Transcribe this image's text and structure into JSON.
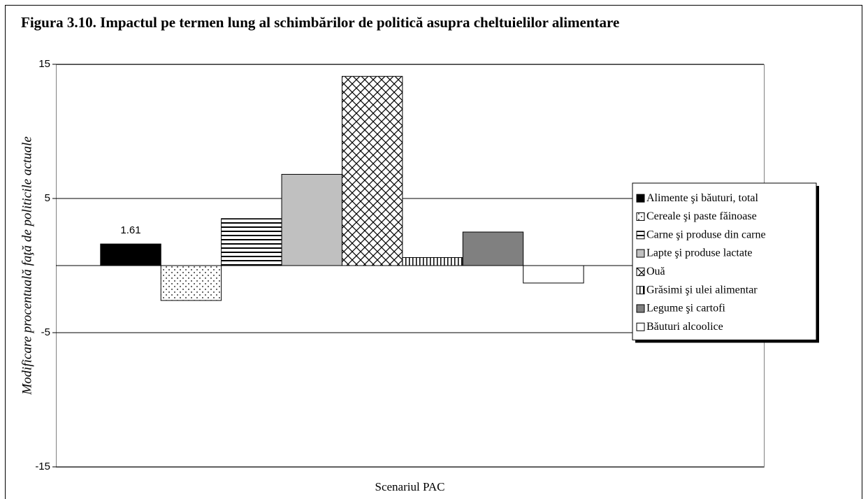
{
  "chart_data": {
    "type": "bar",
    "title": "Figura 3.10. Impactul pe termen lung al schimbărilor de politică asupra cheltuielilor alimentare",
    "y_label": "Modificare procentuală faţă de politicile actuale",
    "x_label": "Scenariul PAC",
    "categories": [
      "Scenariul PAC"
    ],
    "ylim": [
      -15,
      15
    ],
    "yticks": [
      -15,
      -5,
      5,
      15
    ],
    "grid": true,
    "legend": "right",
    "series": [
      {
        "name": "Alimente şi băuturi, total",
        "color": "#000000",
        "pattern": "solid",
        "values": [
          1.61
        ],
        "data_labels": true
      },
      {
        "name": "Cereale şi paste făinoase",
        "color": "#ffffff",
        "pattern": "dots",
        "values": [
          -2.6
        ]
      },
      {
        "name": "Carne şi produse din carne",
        "color": "#ffffff",
        "pattern": "hlines",
        "values": [
          3.5
        ]
      },
      {
        "name": "Lapte şi produse lactate",
        "color": "#c0c0c0",
        "pattern": "solid",
        "values": [
          6.8
        ]
      },
      {
        "name": "Ouă",
        "color": "#ffffff",
        "pattern": "cross",
        "values": [
          14.1
        ]
      },
      {
        "name": "Grăsimi şi ulei alimentar",
        "color": "#ffffff",
        "pattern": "vlines",
        "values": [
          0.6
        ]
      },
      {
        "name": "Legume şi cartofi",
        "color": "#808080",
        "pattern": "solid",
        "values": [
          2.5
        ]
      },
      {
        "name": "Băuturi alcoolice",
        "color": "#ffffff",
        "pattern": "solid",
        "values": [
          -1.3
        ]
      }
    ]
  }
}
